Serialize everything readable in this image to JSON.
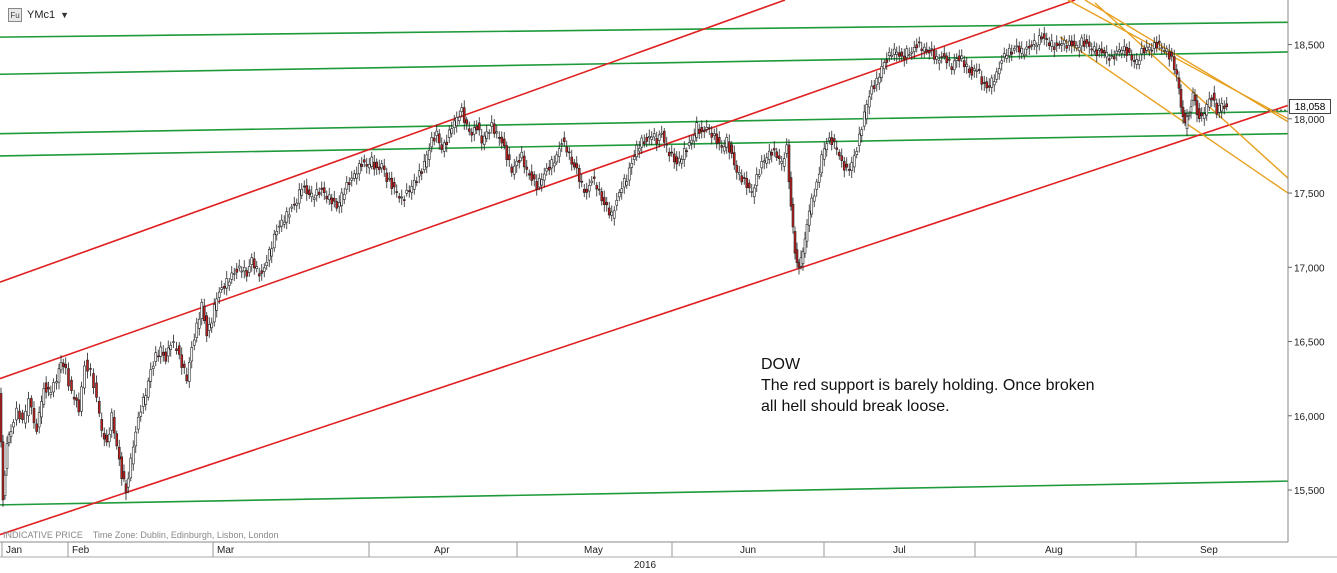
{
  "toolbar": {
    "icon_label": "Fu",
    "symbol": "YMc1",
    "caret": "▼"
  },
  "annotation": {
    "title": "DOW",
    "body": "The red support is barely holding. Once broken\nall hell should break loose."
  },
  "footer": {
    "indicative": "INDICATIVE PRICE",
    "timezone": "Time Zone: Dublin, Edinburgh, Lisbon, London",
    "year": "2016"
  },
  "price_badge": "18,058",
  "colors": {
    "green": "#1e9a3a",
    "red": "#e02020",
    "orange": "#e8a020",
    "candle_up": "#2a9a3a",
    "candle_down": "#c02020"
  },
  "chart_data": {
    "type": "candlestick",
    "title": "",
    "symbol": "YMc1",
    "y_axis": {
      "side": "right",
      "min": 15150,
      "max": 18800,
      "ticks": [
        "15,500",
        "16,000",
        "16,500",
        "17,000",
        "17,500",
        "18,000",
        "18,500"
      ],
      "tick_values": [
        15500,
        16000,
        16500,
        17000,
        17500,
        18000,
        18500
      ]
    },
    "x_axis": {
      "months": [
        "Jan",
        "Feb",
        "Mar",
        "Apr",
        "May",
        "Jun",
        "Jul",
        "Aug",
        "Sep"
      ],
      "year": "2016"
    },
    "last_price": 18058,
    "close_path": [
      [
        0,
        16150
      ],
      [
        4,
        15450
      ],
      [
        8,
        15800
      ],
      [
        12,
        15900
      ],
      [
        18,
        16050
      ],
      [
        24,
        15950
      ],
      [
        30,
        16100
      ],
      [
        38,
        15900
      ],
      [
        45,
        16200
      ],
      [
        52,
        16150
      ],
      [
        58,
        16250
      ],
      [
        62,
        16380
      ],
      [
        67,
        16300
      ],
      [
        73,
        16150
      ],
      [
        80,
        16050
      ],
      [
        86,
        16350
      ],
      [
        92,
        16300
      ],
      [
        98,
        16100
      ],
      [
        103,
        15900
      ],
      [
        108,
        15800
      ],
      [
        113,
        16000
      ],
      [
        118,
        15800
      ],
      [
        123,
        15600
      ],
      [
        127,
        15500
      ],
      [
        132,
        15700
      ],
      [
        137,
        15900
      ],
      [
        142,
        16050
      ],
      [
        147,
        16150
      ],
      [
        152,
        16300
      ],
      [
        157,
        16400
      ],
      [
        162,
        16450
      ],
      [
        167,
        16380
      ],
      [
        172,
        16500
      ],
      [
        178,
        16450
      ],
      [
        183,
        16350
      ],
      [
        188,
        16250
      ],
      [
        193,
        16450
      ],
      [
        198,
        16600
      ],
      [
        203,
        16750
      ],
      [
        208,
        16550
      ],
      [
        213,
        16650
      ],
      [
        218,
        16800
      ],
      [
        223,
        16850
      ],
      [
        228,
        16900
      ],
      [
        233,
        16950
      ],
      [
        238,
        16980
      ],
      [
        243,
        17000
      ],
      [
        248,
        16950
      ],
      [
        253,
        17050
      ],
      [
        258,
        16980
      ],
      [
        263,
        16950
      ],
      [
        268,
        17050
      ],
      [
        273,
        17150
      ],
      [
        278,
        17250
      ],
      [
        283,
        17300
      ],
      [
        288,
        17350
      ],
      [
        293,
        17400
      ],
      [
        298,
        17450
      ],
      [
        303,
        17550
      ],
      [
        308,
        17500
      ],
      [
        313,
        17480
      ],
      [
        318,
        17500
      ],
      [
        323,
        17520
      ],
      [
        328,
        17480
      ],
      [
        333,
        17450
      ],
      [
        338,
        17400
      ],
      [
        343,
        17480
      ],
      [
        348,
        17550
      ],
      [
        353,
        17600
      ],
      [
        358,
        17650
      ],
      [
        363,
        17700
      ],
      [
        368,
        17680
      ],
      [
        373,
        17720
      ],
      [
        378,
        17650
      ],
      [
        383,
        17700
      ],
      [
        388,
        17600
      ],
      [
        393,
        17550
      ],
      [
        398,
        17500
      ],
      [
        403,
        17450
      ],
      [
        408,
        17500
      ],
      [
        413,
        17550
      ],
      [
        418,
        17600
      ],
      [
        423,
        17650
      ],
      [
        428,
        17750
      ],
      [
        433,
        17850
      ],
      [
        438,
        17900
      ],
      [
        443,
        17800
      ],
      [
        448,
        17850
      ],
      [
        453,
        17950
      ],
      [
        458,
        18000
      ],
      [
        463,
        18050
      ],
      [
        468,
        17950
      ],
      [
        473,
        17900
      ],
      [
        478,
        17950
      ],
      [
        483,
        17850
      ],
      [
        488,
        17900
      ],
      [
        493,
        17950
      ],
      [
        498,
        17900
      ],
      [
        503,
        17850
      ],
      [
        508,
        17750
      ],
      [
        513,
        17650
      ],
      [
        518,
        17700
      ],
      [
        523,
        17750
      ],
      [
        528,
        17650
      ],
      [
        533,
        17600
      ],
      [
        538,
        17550
      ],
      [
        543,
        17600
      ],
      [
        548,
        17650
      ],
      [
        553,
        17700
      ],
      [
        558,
        17750
      ],
      [
        563,
        17850
      ],
      [
        568,
        17800
      ],
      [
        573,
        17700
      ],
      [
        578,
        17650
      ],
      [
        583,
        17550
      ],
      [
        588,
        17500
      ],
      [
        593,
        17600
      ],
      [
        598,
        17550
      ],
      [
        603,
        17450
      ],
      [
        608,
        17400
      ],
      [
        613,
        17350
      ],
      [
        618,
        17450
      ],
      [
        623,
        17550
      ],
      [
        628,
        17600
      ],
      [
        633,
        17700
      ],
      [
        638,
        17800
      ],
      [
        643,
        17850
      ],
      [
        648,
        17850
      ],
      [
        653,
        17900
      ],
      [
        658,
        17850
      ],
      [
        663,
        17900
      ],
      [
        668,
        17800
      ],
      [
        673,
        17750
      ],
      [
        678,
        17700
      ],
      [
        683,
        17750
      ],
      [
        688,
        17800
      ],
      [
        693,
        17850
      ],
      [
        698,
        17950
      ],
      [
        703,
        17900
      ],
      [
        708,
        17950
      ],
      [
        713,
        17900
      ],
      [
        718,
        17850
      ],
      [
        723,
        17800
      ],
      [
        728,
        17850
      ],
      [
        733,
        17750
      ],
      [
        738,
        17650
      ],
      [
        743,
        17600
      ],
      [
        748,
        17550
      ],
      [
        753,
        17500
      ],
      [
        758,
        17600
      ],
      [
        763,
        17700
      ],
      [
        768,
        17750
      ],
      [
        773,
        17780
      ],
      [
        778,
        17750
      ],
      [
        783,
        17700
      ],
      [
        788,
        17800
      ],
      [
        792,
        17400
      ],
      [
        796,
        17100
      ],
      [
        800,
        17000
      ],
      [
        804,
        17100
      ],
      [
        808,
        17300
      ],
      [
        813,
        17450
      ],
      [
        818,
        17550
      ],
      [
        823,
        17750
      ],
      [
        828,
        17850
      ],
      [
        833,
        17850
      ],
      [
        838,
        17800
      ],
      [
        843,
        17700
      ],
      [
        848,
        17650
      ],
      [
        853,
        17700
      ],
      [
        858,
        17800
      ],
      [
        863,
        17950
      ],
      [
        868,
        18100
      ],
      [
        873,
        18200
      ],
      [
        878,
        18250
      ],
      [
        883,
        18350
      ],
      [
        888,
        18400
      ],
      [
        893,
        18450
      ],
      [
        898,
        18450
      ],
      [
        903,
        18400
      ],
      [
        908,
        18450
      ],
      [
        913,
        18450
      ],
      [
        918,
        18500
      ],
      [
        923,
        18480
      ],
      [
        928,
        18450
      ],
      [
        933,
        18450
      ],
      [
        938,
        18400
      ],
      [
        943,
        18420
      ],
      [
        948,
        18400
      ],
      [
        953,
        18350
      ],
      [
        958,
        18400
      ],
      [
        963,
        18400
      ],
      [
        968,
        18350
      ],
      [
        973,
        18300
      ],
      [
        978,
        18350
      ],
      [
        983,
        18250
      ],
      [
        988,
        18200
      ],
      [
        993,
        18250
      ],
      [
        998,
        18300
      ],
      [
        1003,
        18400
      ],
      [
        1008,
        18450
      ],
      [
        1013,
        18450
      ],
      [
        1018,
        18480
      ],
      [
        1023,
        18450
      ],
      [
        1028,
        18470
      ],
      [
        1033,
        18500
      ],
      [
        1038,
        18520
      ],
      [
        1043,
        18550
      ],
      [
        1048,
        18520
      ],
      [
        1053,
        18500
      ],
      [
        1058,
        18480
      ],
      [
        1063,
        18520
      ],
      [
        1068,
        18500
      ],
      [
        1073,
        18500
      ],
      [
        1078,
        18480
      ],
      [
        1083,
        18520
      ],
      [
        1088,
        18500
      ],
      [
        1093,
        18480
      ],
      [
        1098,
        18450
      ],
      [
        1103,
        18450
      ],
      [
        1108,
        18430
      ],
      [
        1113,
        18400
      ],
      [
        1118,
        18450
      ],
      [
        1123,
        18480
      ],
      [
        1128,
        18450
      ],
      [
        1133,
        18400
      ],
      [
        1138,
        18380
      ],
      [
        1143,
        18450
      ],
      [
        1148,
        18480
      ],
      [
        1153,
        18480
      ],
      [
        1158,
        18500
      ],
      [
        1163,
        18480
      ],
      [
        1168,
        18450
      ],
      [
        1173,
        18400
      ],
      [
        1178,
        18300
      ],
      [
        1182,
        18100
      ],
      [
        1186,
        17950
      ],
      [
        1190,
        18050
      ],
      [
        1194,
        18150
      ],
      [
        1198,
        18050
      ],
      [
        1203,
        18000
      ],
      [
        1208,
        18100
      ],
      [
        1213,
        18150
      ],
      [
        1218,
        18050
      ],
      [
        1223,
        18100
      ],
      [
        1228,
        18058
      ]
    ],
    "trendlines": [
      {
        "color": "green",
        "from": [
          0,
          18550
        ],
        "to": [
          1288,
          18650
        ]
      },
      {
        "color": "green",
        "from": [
          0,
          18300
        ],
        "to": [
          1288,
          18450
        ]
      },
      {
        "color": "green",
        "from": [
          0,
          17900
        ],
        "to": [
          1288,
          18050
        ]
      },
      {
        "color": "green",
        "from": [
          0,
          17750
        ],
        "to": [
          1288,
          17900
        ]
      },
      {
        "color": "green",
        "from": [
          0,
          15400
        ],
        "to": [
          1288,
          15560
        ]
      },
      {
        "color": "red",
        "from": [
          0,
          16900
        ],
        "to": [
          785,
          18800
        ]
      },
      {
        "color": "red",
        "from": [
          0,
          16250
        ],
        "to": [
          1075,
          18800
        ]
      },
      {
        "color": "red",
        "from": [
          0,
          15200
        ],
        "to": [
          1288,
          18090
        ]
      },
      {
        "color": "orange",
        "from": [
          1068,
          18800
        ],
        "to": [
          1288,
          18000
        ]
      },
      {
        "color": "orange",
        "from": [
          1085,
          18800
        ],
        "to": [
          1288,
          17980
        ]
      },
      {
        "color": "orange",
        "from": [
          1095,
          18780
        ],
        "to": [
          1288,
          17600
        ]
      },
      {
        "color": "orange",
        "from": [
          1060,
          18550
        ],
        "to": [
          1288,
          17500
        ]
      }
    ]
  }
}
